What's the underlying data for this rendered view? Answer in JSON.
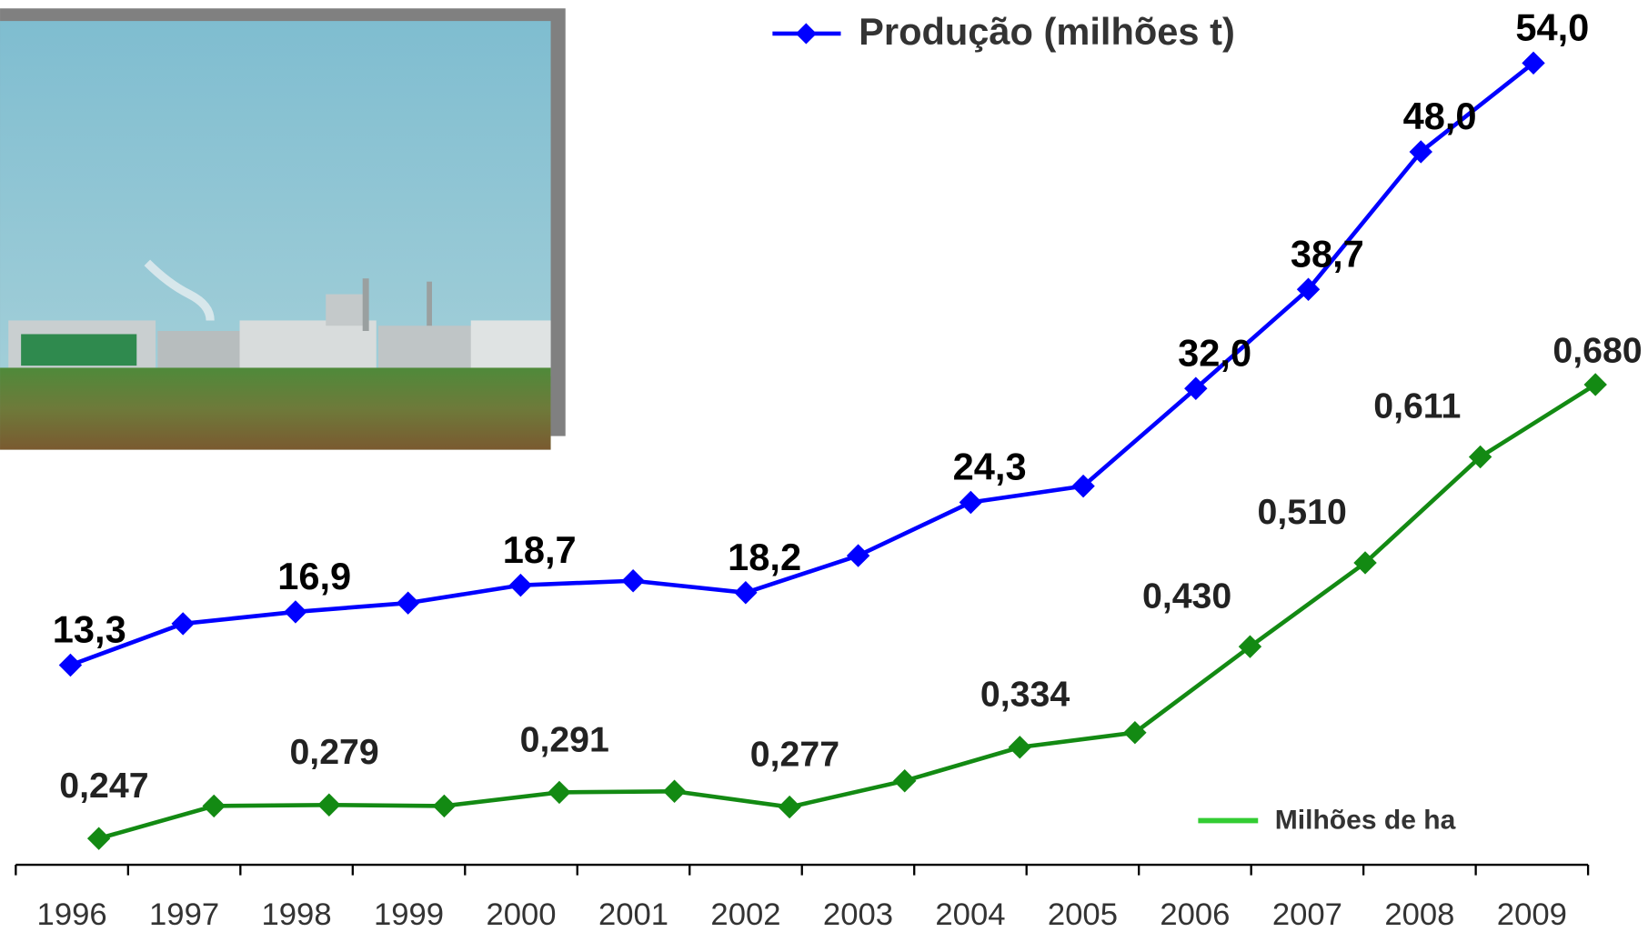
{
  "chart_data": {
    "type": "line",
    "categories": [
      "1996",
      "1997",
      "1998",
      "1999",
      "2000",
      "2001",
      "2002",
      "2003",
      "2004",
      "2005",
      "2006",
      "2007",
      "2008",
      "2009"
    ],
    "series": [
      {
        "name": "Produção (milhões t)",
        "color": "#0000ff",
        "values": [
          13.3,
          16.1,
          16.9,
          17.5,
          18.7,
          19.0,
          18.2,
          20.7,
          24.3,
          25.4,
          32.0,
          38.7,
          48.0,
          54.0
        ],
        "value_labels": [
          "13,3",
          null,
          "16,9",
          null,
          "18,7",
          null,
          "18,2",
          null,
          "24,3",
          null,
          "32,0",
          "38,7",
          "48,0",
          "54,0"
        ]
      },
      {
        "name": "Milhões de ha",
        "color": "#138a13",
        "values": [
          0.247,
          0.278,
          0.279,
          0.278,
          0.291,
          0.292,
          0.277,
          0.302,
          0.334,
          0.348,
          0.43,
          0.51,
          0.611,
          0.68
        ],
        "value_labels": [
          "0,247",
          null,
          "0,279",
          null,
          "0,291",
          null,
          "0,277",
          null,
          "0,334",
          null,
          "0,430",
          "0,510",
          "0,611",
          "0,680"
        ]
      }
    ]
  }
}
